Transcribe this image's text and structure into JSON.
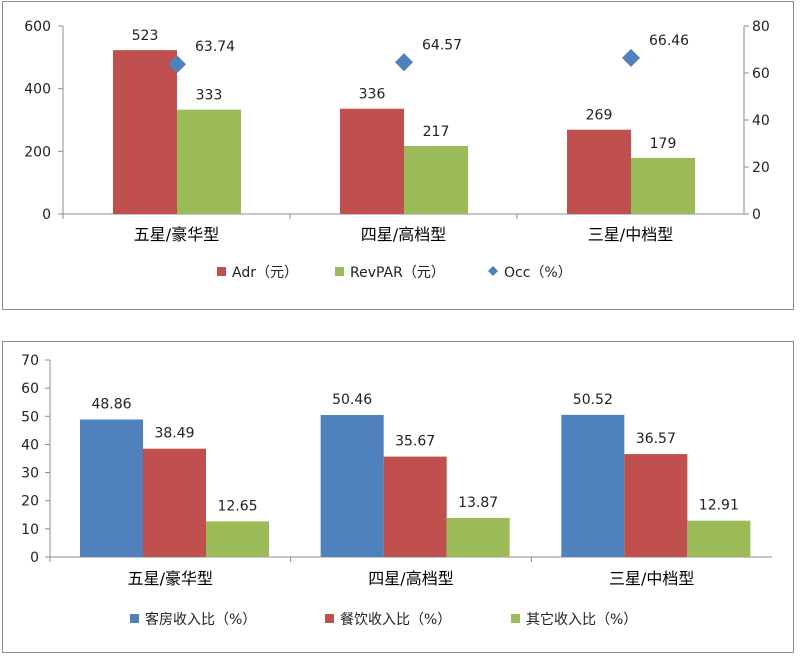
{
  "colors": {
    "red": "#c0504d",
    "green": "#9bbb59",
    "blue": "#4f81bd",
    "diamond": "#4f81bd"
  },
  "chart_data": [
    {
      "type": "bar",
      "categories": [
        "五星/豪华型",
        "四星/高档型",
        "三星/中档型"
      ],
      "series": [
        {
          "name": "Adr（元）",
          "values": [
            523,
            336,
            269
          ],
          "axis": "left",
          "color": "#c0504d"
        },
        {
          "name": "RevPAR（元）",
          "values": [
            333,
            217,
            179
          ],
          "axis": "left",
          "color": "#9bbb59"
        },
        {
          "name": "Occ（%）",
          "values": [
            63.74,
            64.57,
            66.46
          ],
          "axis": "right",
          "type": "scatter",
          "marker": "diamond",
          "color": "#4f81bd"
        }
      ],
      "ylim": [
        0,
        600
      ],
      "y_ticks": [
        0,
        200,
        400,
        600
      ],
      "y2lim": [
        0,
        80
      ],
      "y2_ticks": [
        0,
        20,
        40,
        60,
        80
      ],
      "legend": "bottom",
      "grid": false
    },
    {
      "type": "bar",
      "categories": [
        "五星/豪华型",
        "四星/高档型",
        "三星/中档型"
      ],
      "series": [
        {
          "name": "客房收入比（%）",
          "values": [
            48.86,
            50.46,
            50.52
          ],
          "color": "#4f81bd"
        },
        {
          "name": "餐饮收入比（%）",
          "values": [
            38.49,
            35.67,
            36.57
          ],
          "color": "#c0504d"
        },
        {
          "name": "其它收入比（%）",
          "values": [
            12.65,
            13.87,
            12.91
          ],
          "color": "#9bbb59"
        }
      ],
      "ylim": [
        0,
        70
      ],
      "y_ticks": [
        0,
        10,
        20,
        30,
        40,
        50,
        60,
        70
      ],
      "legend": "bottom",
      "grid": false
    }
  ]
}
